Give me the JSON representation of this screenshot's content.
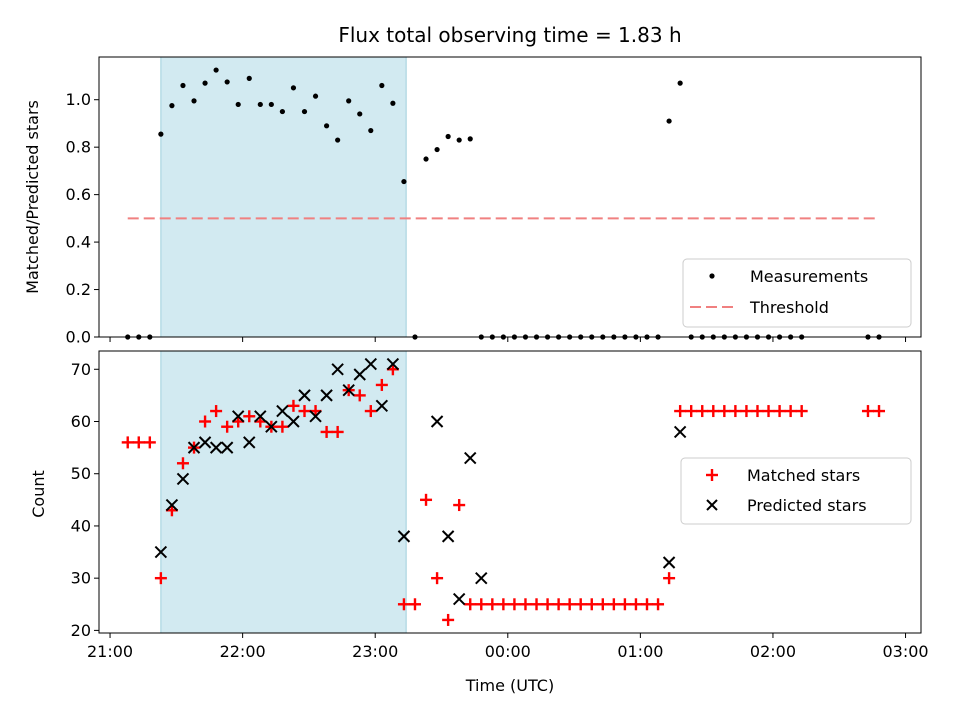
{
  "chart_data": [
    {
      "type": "scatter",
      "title": "Flux total observing time = 1.83 h",
      "ylabel": "Matched/Predicted stars",
      "xlim": [
        "20:55",
        "03:07"
      ],
      "ylim": [
        0,
        1.18
      ],
      "yticks": [
        0.0,
        0.2,
        0.4,
        0.6,
        0.8,
        1.0
      ],
      "ytick_labels": [
        "0.0",
        "0.2",
        "0.4",
        "0.6",
        "0.8",
        "1.0"
      ],
      "grid": false,
      "legend_position": "bottom-right",
      "shaded_span": [
        "21:23",
        "23:14"
      ],
      "shade_color": "#add8e6",
      "series": [
        {
          "name": "Measurements",
          "color": "#000000",
          "marker": "dot",
          "x": [
            "21:08",
            "21:13",
            "21:18",
            "21:23",
            "21:28",
            "21:33",
            "21:38",
            "21:43",
            "21:48",
            "21:53",
            "21:58",
            "22:03",
            "22:08",
            "22:13",
            "22:18",
            "22:23",
            "22:28",
            "22:33",
            "22:38",
            "22:43",
            "22:48",
            "22:53",
            "22:58",
            "23:03",
            "23:08",
            "23:13",
            "23:18",
            "23:23",
            "23:28",
            "23:33",
            "23:38",
            "23:43",
            "23:48",
            "23:53",
            "23:58",
            "00:03",
            "00:08",
            "00:13",
            "00:18",
            "00:23",
            "00:28",
            "00:33",
            "00:38",
            "00:43",
            "00:48",
            "00:53",
            "00:58",
            "01:03",
            "01:08",
            "01:13",
            "01:18",
            "01:23",
            "01:28",
            "01:33",
            "01:38",
            "01:43",
            "01:48",
            "01:53",
            "01:58",
            "02:03",
            "02:08",
            "02:13",
            "02:43",
            "02:48"
          ],
          "y": [
            0,
            0,
            0,
            0.855,
            0.975,
            1.06,
            0.995,
            1.07,
            1.125,
            1.075,
            0.98,
            1.09,
            0.98,
            0.98,
            0.95,
            1.05,
            0.95,
            1.015,
            0.89,
            0.83,
            0.995,
            0.94,
            0.87,
            1.06,
            0.985,
            0.655,
            0,
            0.75,
            0.79,
            0.845,
            0.83,
            0.835,
            0,
            0,
            0,
            0,
            0,
            0,
            0,
            0,
            0,
            0,
            0,
            0,
            0,
            0,
            0,
            0,
            0,
            0.91,
            1.07,
            0,
            0,
            0,
            0,
            0,
            0,
            0,
            0,
            0,
            0,
            0,
            0,
            0
          ]
        },
        {
          "name": "Threshold",
          "color": "#f08080",
          "style": "dashed",
          "x": [
            "21:08",
            "02:48"
          ],
          "y": [
            0.5,
            0.5
          ]
        }
      ]
    },
    {
      "type": "scatter",
      "xlabel": "Time (UTC)",
      "ylabel": "Count",
      "xlim": [
        "20:55",
        "03:07"
      ],
      "ylim": [
        19.5,
        73.5
      ],
      "yticks": [
        20,
        30,
        40,
        50,
        60,
        70
      ],
      "ytick_labels": [
        "20",
        "30",
        "40",
        "50",
        "60",
        "70"
      ],
      "xticks": [
        "21:00",
        "22:00",
        "23:00",
        "00:00",
        "01:00",
        "02:00",
        "03:00"
      ],
      "xtick_labels": [
        "21:00",
        "22:00",
        "23:00",
        "00:00",
        "01:00",
        "02:00",
        "03:00"
      ],
      "grid": false,
      "legend_position": "center-right",
      "shaded_span": [
        "21:23",
        "23:14"
      ],
      "shade_color": "#add8e6",
      "series": [
        {
          "name": "Matched stars",
          "color": "#ff0000",
          "marker": "plus",
          "x": [
            "21:08",
            "21:13",
            "21:18",
            "21:23",
            "21:28",
            "21:33",
            "21:38",
            "21:43",
            "21:48",
            "21:53",
            "21:58",
            "22:03",
            "22:08",
            "22:13",
            "22:18",
            "22:23",
            "22:28",
            "22:33",
            "22:38",
            "22:43",
            "22:48",
            "22:53",
            "22:58",
            "23:03",
            "23:08",
            "23:13",
            "23:18",
            "23:23",
            "23:28",
            "23:33",
            "23:38",
            "23:43",
            "23:48",
            "23:53",
            "23:58",
            "00:03",
            "00:08",
            "00:13",
            "00:18",
            "00:23",
            "00:28",
            "00:33",
            "00:38",
            "00:43",
            "00:48",
            "00:53",
            "00:58",
            "01:03",
            "01:08",
            "01:13",
            "01:18",
            "01:23",
            "01:28",
            "01:33",
            "01:38",
            "01:43",
            "01:48",
            "01:53",
            "01:58",
            "02:03",
            "02:08",
            "02:13",
            "02:43",
            "02:48"
          ],
          "y": [
            56,
            56,
            56,
            30,
            43,
            52,
            55,
            60,
            62,
            59,
            60,
            61,
            60,
            59,
            59,
            63,
            62,
            62,
            58,
            58,
            66,
            65,
            62,
            67,
            70,
            25,
            25,
            45,
            30,
            22,
            44,
            25,
            25,
            25,
            25,
            25,
            25,
            25,
            25,
            25,
            25,
            25,
            25,
            25,
            25,
            25,
            25,
            25,
            25,
            30,
            62,
            62,
            62,
            62,
            62,
            62,
            62,
            62,
            62,
            62,
            62,
            62,
            62,
            62
          ]
        },
        {
          "name": "Predicted stars",
          "color": "#000000",
          "marker": "x",
          "x": [
            "21:23",
            "21:28",
            "21:33",
            "21:38",
            "21:43",
            "21:48",
            "21:53",
            "21:58",
            "22:03",
            "22:08",
            "22:13",
            "22:18",
            "22:23",
            "22:28",
            "22:33",
            "22:38",
            "22:43",
            "22:48",
            "22:53",
            "22:58",
            "23:03",
            "23:08",
            "23:13",
            "23:28",
            "23:33",
            "23:38",
            "23:43",
            "23:48",
            "01:13",
            "01:18"
          ],
          "y": [
            35,
            44,
            49,
            55,
            56,
            55,
            55,
            61,
            56,
            61,
            59,
            62,
            60,
            65,
            61,
            65,
            70,
            66,
            69,
            71,
            63,
            71,
            38,
            60,
            38,
            26,
            53,
            30,
            33,
            58
          ]
        }
      ]
    }
  ]
}
